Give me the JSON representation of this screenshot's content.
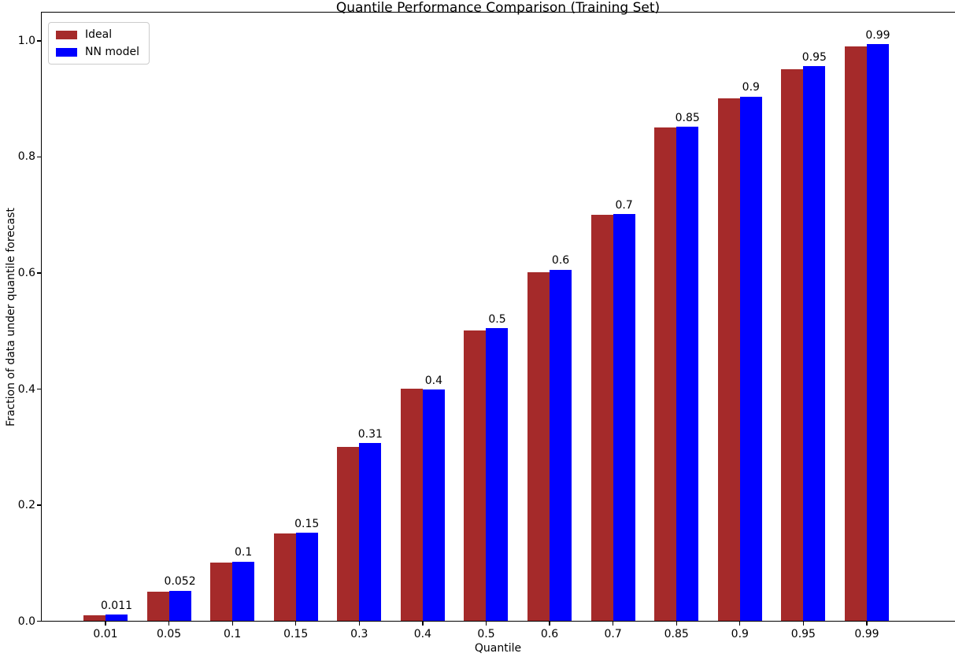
{
  "chart_data": {
    "type": "bar",
    "title": "Quantile Performance Comparison (Training Set)",
    "xlabel": "Quantile",
    "ylabel": "Fraction of data under quantile forecast",
    "categories": [
      "0.01",
      "0.05",
      "0.1",
      "0.15",
      "0.3",
      "0.4",
      "0.5",
      "0.6",
      "0.7",
      "0.85",
      "0.9",
      "0.95",
      "0.99"
    ],
    "series": [
      {
        "name": "Ideal",
        "color": "#A52A2A",
        "values": [
          0.01,
          0.05,
          0.1,
          0.15,
          0.3,
          0.4,
          0.5,
          0.6,
          0.7,
          0.85,
          0.9,
          0.95,
          0.99
        ]
      },
      {
        "name": "NN model",
        "color": "#0000FF",
        "values": [
          0.011,
          0.052,
          0.102,
          0.152,
          0.306,
          0.398,
          0.504,
          0.605,
          0.701,
          0.851,
          0.903,
          0.955,
          0.993
        ],
        "bar_labels": [
          "0.011",
          "0.052",
          "0.1",
          "0.15",
          "0.31",
          "0.4",
          "0.5",
          "0.6",
          "0.7",
          "0.85",
          "0.9",
          "0.95",
          "0.99"
        ]
      }
    ],
    "ytick_labels": [
      "0.0",
      "0.2",
      "0.4",
      "0.6",
      "0.8",
      "1.0"
    ],
    "ytick_values": [
      0.0,
      0.2,
      0.4,
      0.6,
      0.8,
      1.0
    ],
    "ylim": [
      0,
      1.0487
    ],
    "grid": false,
    "legend_position": "upper left",
    "background_color": "#ffffff",
    "text_color": "#000000"
  }
}
